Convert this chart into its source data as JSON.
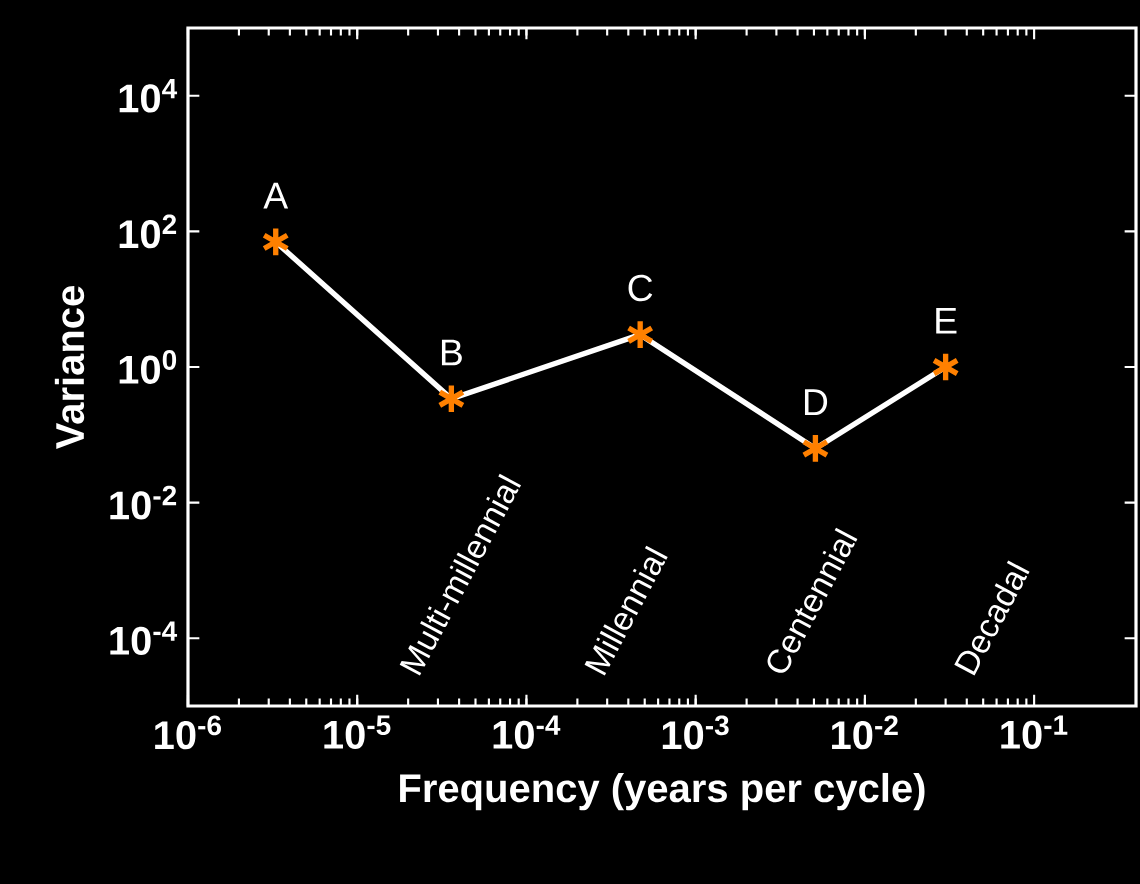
{
  "chart_data": {
    "type": "line",
    "xlabel": "Frequency (years per cycle)",
    "ylabel": "Variance",
    "log": "xy",
    "grid": false,
    "marker": "cross",
    "line_style": "solid",
    "x": [
      3.3e-06,
      3.6e-05,
      0.00047,
      0.0051,
      0.03
    ],
    "series": [
      {
        "color": "#ffffff",
        "values": [
          70,
          0.34,
          3,
          0.063,
          1
        ]
      }
    ],
    "xlim": [
      1e-06,
      0.4
    ],
    "ylim": [
      1e-05,
      100000.0
    ],
    "xticks": [
      {
        "value": 1e-06,
        "label": "10$^{-6}$"
      },
      {
        "value": 1e-05,
        "label": "10$^{-5}$"
      },
      {
        "value": 0.0001,
        "label": "10$^{-4}$"
      },
      {
        "value": 0.001,
        "label": "10$^{-3}$"
      },
      {
        "value": 0.01,
        "label": "10$^{-2}$"
      },
      {
        "value": 0.1,
        "label": "10$^{-1}$"
      }
    ],
    "yticks": [
      {
        "value": 0.0001,
        "label": "10$^{-4}$"
      },
      {
        "value": 0.01,
        "label": "10$^{-2}$"
      },
      {
        "value": 1,
        "label": "10$^{0}$"
      },
      {
        "value": 100,
        "label": "10$^{2}$"
      },
      {
        "value": 10000,
        "label": "10$^{4}$"
      }
    ],
    "annotations": [
      {
        "text": "A",
        "x": 3.3e-06,
        "y": 70
      },
      {
        "text": "B",
        "x": 3.6e-05,
        "y": 0.34
      },
      {
        "text": "C",
        "x": 0.00047,
        "y": 3
      },
      {
        "text": "D",
        "x": 0.0051,
        "y": 0.063
      },
      {
        "text": "E",
        "x": 0.03,
        "y": 1
      },
      "Multi-millennial",
      "Millennial",
      "Centennial",
      "Decadal"
    ]
  }
}
